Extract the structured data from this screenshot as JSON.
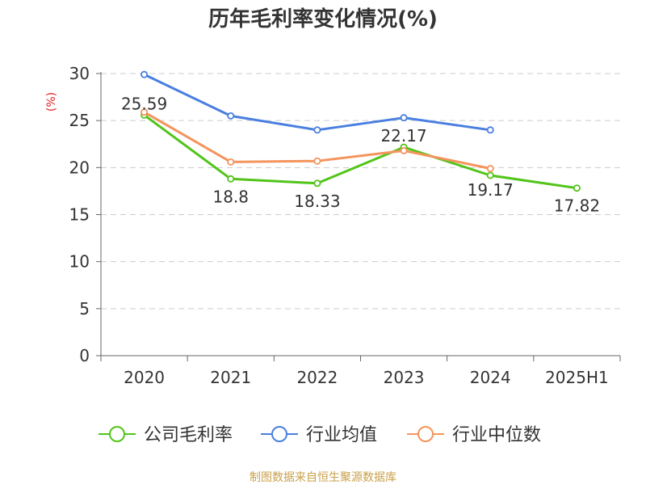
{
  "chart_data": {
    "type": "line",
    "title": "历年毛利率变化情况(%)",
    "ylabel": "(%)",
    "xlabel": "",
    "categories": [
      "2020",
      "2021",
      "2022",
      "2023",
      "2024",
      "2025H1"
    ],
    "ylim": [
      0,
      30
    ],
    "yticks": [
      0,
      5,
      10,
      15,
      20,
      25,
      30
    ],
    "grid": true,
    "legend_position": "bottom",
    "series": [
      {
        "name": "公司毛利率",
        "color": "#52c41a",
        "values": [
          25.59,
          18.8,
          18.33,
          22.17,
          19.17,
          17.82
        ],
        "labels": [
          "25.59",
          "18.8",
          "18.33",
          "22.17",
          "19.17",
          "17.82"
        ]
      },
      {
        "name": "行业均值",
        "color": "#4a7fe0",
        "values": [
          29.9,
          25.5,
          24.0,
          25.3,
          24.0,
          null
        ],
        "labels": []
      },
      {
        "name": "行业中位数",
        "color": "#f4945c",
        "values": [
          25.9,
          20.6,
          20.7,
          21.8,
          19.9,
          null
        ],
        "labels": []
      }
    ]
  },
  "source": {
    "text": "制图数据来自恒生聚源数据库",
    "color": "#c9a04a"
  },
  "colors": {
    "title": "#333333",
    "ylabel": "#e02020",
    "axis": "#666666",
    "grid": "#cccccc"
  }
}
